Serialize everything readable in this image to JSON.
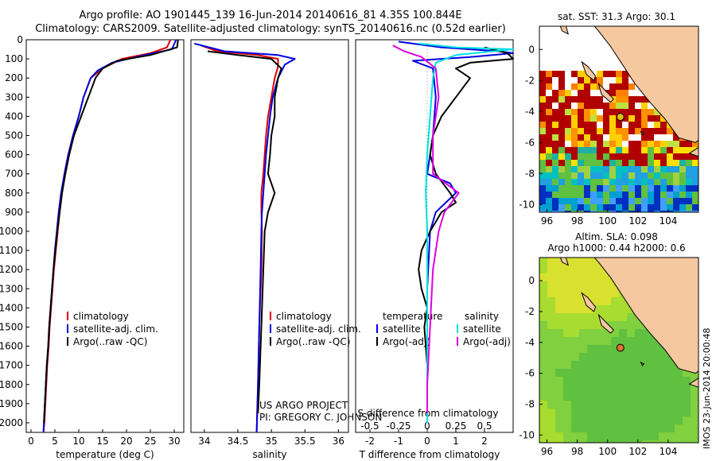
{
  "header": {
    "line1": "Argo profile: AO 1901445_139 16-Jun-2014 20140616_81 4.35S 100.844E",
    "line2": "Climatology: CARS2009. Satellite-adjusted climatology: synTS_20140616.nc (0.52d earlier)"
  },
  "colors": {
    "climatology": "#e00000",
    "satellite": "#0000e0",
    "argo": "#000000",
    "sat_salinity": "#00e0e0",
    "argo_adj_salinity": "#e000e0",
    "land": "#f5c8a0"
  },
  "chart_data": [
    {
      "type": "line",
      "name": "temperature-panel",
      "xlabel": "temperature (deg C)",
      "ylim": [
        0,
        2050
      ],
      "xlim": [
        -1,
        32
      ],
      "xticks": [
        0,
        5,
        10,
        15,
        20,
        25,
        30
      ],
      "yticks": [
        0,
        100,
        200,
        300,
        400,
        500,
        600,
        700,
        800,
        900,
        1000,
        1100,
        1200,
        1300,
        1400,
        1500,
        1600,
        1700,
        1800,
        1900,
        2000
      ],
      "legend": [
        "climatology",
        "satellite-adj. clim.",
        "Argo(..raw -QC)"
      ],
      "series": [
        {
          "name": "climatology",
          "color": "#e00000",
          "points": [
            [
              29.2,
              0
            ],
            [
              28.5,
              40
            ],
            [
              25,
              70
            ],
            [
              19,
              100
            ],
            [
              15,
              150
            ],
            [
              12.5,
              200
            ],
            [
              11,
              300
            ],
            [
              10,
              400
            ],
            [
              8.8,
              500
            ],
            [
              7.8,
              600
            ],
            [
              7,
              700
            ],
            [
              6.5,
              800
            ],
            [
              6,
              900
            ],
            [
              5.6,
              1000
            ],
            [
              5.2,
              1100
            ],
            [
              4.8,
              1200
            ],
            [
              4.5,
              1300
            ],
            [
              4.2,
              1400
            ],
            [
              3.9,
              1500
            ],
            [
              3.7,
              1600
            ],
            [
              3.4,
              1700
            ],
            [
              3.2,
              1800
            ],
            [
              3,
              1900
            ],
            [
              2.8,
              2000
            ],
            [
              2.6,
              2050
            ]
          ]
        },
        {
          "name": "satellite-adj. clim.",
          "color": "#0000e0",
          "points": [
            [
              30.4,
              0
            ],
            [
              29.5,
              50
            ],
            [
              22,
              90
            ],
            [
              17,
              120
            ],
            [
              14,
              160
            ],
            [
              12.5,
              200
            ],
            [
              11,
              300
            ],
            [
              10,
              400
            ],
            [
              8.8,
              500
            ],
            [
              7.8,
              600
            ],
            [
              7,
              700
            ],
            [
              6.3,
              800
            ],
            [
              5.8,
              900
            ],
            [
              5.4,
              1000
            ],
            [
              5,
              1100
            ],
            [
              4.7,
              1200
            ],
            [
              4.4,
              1300
            ],
            [
              4.1,
              1400
            ],
            [
              3.8,
              1500
            ],
            [
              3.6,
              1600
            ],
            [
              3.3,
              1700
            ],
            [
              3.1,
              1800
            ],
            [
              2.9,
              1900
            ],
            [
              2.7,
              2000
            ],
            [
              2.6,
              2050
            ]
          ]
        },
        {
          "name": "Argo(..raw -QC)",
          "color": "#000000",
          "points": [
            [
              30.8,
              0
            ],
            [
              30.6,
              40
            ],
            [
              25,
              80
            ],
            [
              18,
              110
            ],
            [
              15,
              150
            ],
            [
              13.5,
              200
            ],
            [
              12,
              300
            ],
            [
              10.5,
              400
            ],
            [
              9,
              500
            ],
            [
              8,
              600
            ],
            [
              7.2,
              700
            ],
            [
              6.5,
              800
            ],
            [
              6,
              900
            ],
            [
              5.5,
              1000
            ],
            [
              5.1,
              1100
            ],
            [
              4.7,
              1200
            ],
            [
              4.4,
              1300
            ],
            [
              4.1,
              1400
            ],
            [
              3.8,
              1500
            ],
            [
              3.6,
              1600
            ],
            [
              3.3,
              1700
            ],
            [
              3.1,
              1800
            ],
            [
              2.9,
              1900
            ],
            [
              2.7,
              2000
            ]
          ]
        }
      ]
    },
    {
      "type": "line",
      "name": "salinity-panel",
      "xlabel": "salinity",
      "ylim": [
        0,
        2050
      ],
      "xlim": [
        33.8,
        36.15
      ],
      "xticks": [
        34,
        34.5,
        35,
        35.5,
        36
      ],
      "legend": [
        "climatology",
        "satellite-adj. clim.",
        "Argo(..raw -QC)"
      ],
      "annotation": [
        "US ARGO PROJECT",
        "PI: GREGORY C. JOHNSON"
      ],
      "series": [
        {
          "name": "climatology",
          "color": "#e00000",
          "points": [
            [
              33.95,
              30
            ],
            [
              34.2,
              60
            ],
            [
              34.8,
              80
            ],
            [
              35.1,
              100
            ],
            [
              35.1,
              140
            ],
            [
              35.05,
              200
            ],
            [
              35.0,
              300
            ],
            [
              34.95,
              400
            ],
            [
              34.92,
              500
            ],
            [
              34.9,
              600
            ],
            [
              34.88,
              700
            ],
            [
              34.85,
              800
            ],
            [
              34.85,
              900
            ],
            [
              34.86,
              1000
            ],
            [
              34.85,
              1200
            ],
            [
              34.82,
              1500
            ],
            [
              34.8,
              1800
            ],
            [
              34.78,
              2050
            ]
          ]
        },
        {
          "name": "satellite-adj. clim.",
          "color": "#0000e0",
          "points": [
            [
              33.85,
              20
            ],
            [
              34.3,
              60
            ],
            [
              35.1,
              80
            ],
            [
              35.35,
              100
            ],
            [
              35.2,
              130
            ],
            [
              35.1,
              200
            ],
            [
              35.02,
              300
            ],
            [
              34.98,
              400
            ],
            [
              34.95,
              500
            ],
            [
              34.92,
              600
            ],
            [
              34.9,
              700
            ],
            [
              34.88,
              800
            ],
            [
              34.86,
              900
            ],
            [
              34.85,
              1000
            ],
            [
              34.84,
              1200
            ],
            [
              34.82,
              1500
            ],
            [
              34.8,
              1800
            ],
            [
              34.78,
              2050
            ]
          ]
        },
        {
          "name": "Argo(..raw -QC)",
          "color": "#000000",
          "points": [
            [
              34.05,
              60
            ],
            [
              34.5,
              80
            ],
            [
              35.0,
              100
            ],
            [
              35.15,
              150
            ],
            [
              35.1,
              200
            ],
            [
              35.05,
              300
            ],
            [
              35.05,
              400
            ],
            [
              35.0,
              500
            ],
            [
              34.98,
              600
            ],
            [
              34.95,
              700
            ],
            [
              35.05,
              800
            ],
            [
              34.95,
              900
            ],
            [
              34.9,
              1000
            ],
            [
              34.88,
              1200
            ],
            [
              34.85,
              1500
            ],
            [
              34.82,
              1800
            ],
            [
              34.8,
              1950
            ]
          ]
        }
      ]
    },
    {
      "type": "line",
      "name": "difference-panel",
      "xlabel_bottom": "T difference from climatology",
      "xlabel_top": "S difference from climatology",
      "ylim": [
        0,
        2050
      ],
      "xlim": [
        -2.5,
        3
      ],
      "xticks": [
        -2,
        -1,
        0,
        1,
        2
      ],
      "sticks": [
        {
          "label": "-0.5",
          "x": -2
        },
        {
          "label": "-0.25",
          "x": -1
        },
        {
          "label": "0",
          "x": 0
        },
        {
          "label": "0.25",
          "x": 1
        },
        {
          "label": "0.5",
          "x": 2
        }
      ],
      "legend_titles": [
        "temperature",
        "salinity"
      ],
      "legend": [
        "satellite",
        "Argo(-adj)",
        "satellite",
        "Argo(-adj)"
      ],
      "series": [
        {
          "name": "T satellite",
          "color": "#0000e0",
          "points": [
            [
              -1,
              10
            ],
            [
              0.5,
              40
            ],
            [
              2.5,
              60
            ],
            [
              3,
              70
            ],
            [
              1.5,
              90
            ],
            [
              -0.5,
              110
            ],
            [
              0.2,
              150
            ],
            [
              0.3,
              300
            ],
            [
              0.2,
              500
            ],
            [
              0,
              700
            ],
            [
              0.8,
              750
            ],
            [
              1,
              800
            ],
            [
              0.3,
              900
            ],
            [
              0.1,
              1000
            ],
            [
              0,
              1300
            ],
            [
              0,
              1600
            ],
            [
              0,
              2000
            ]
          ]
        },
        {
          "name": "T Argo(-adj)",
          "color": "#000000",
          "points": [
            [
              2,
              40
            ],
            [
              2.8,
              70
            ],
            [
              3,
              100
            ],
            [
              1.5,
              120
            ],
            [
              1,
              150
            ],
            [
              1.5,
              200
            ],
            [
              1,
              300
            ],
            [
              0.5,
              400
            ],
            [
              0.2,
              500
            ],
            [
              0.1,
              600
            ],
            [
              0.3,
              700
            ],
            [
              0.8,
              800
            ],
            [
              1,
              850
            ],
            [
              0.5,
              900
            ],
            [
              0.1,
              1000
            ],
            [
              -0.2,
              1100
            ],
            [
              -0.3,
              1200
            ],
            [
              -0.2,
              1300
            ],
            [
              0,
              1400
            ],
            [
              -0.1,
              1500
            ],
            [
              0,
              1700
            ],
            [
              0,
              1900
            ]
          ]
        },
        {
          "name": "S satellite",
          "color": "#00e0e0",
          "points": [
            [
              -0.3,
              20
            ],
            [
              1,
              40
            ],
            [
              3,
              50
            ],
            [
              1,
              80
            ],
            [
              0.3,
              120
            ],
            [
              0.2,
              200
            ],
            [
              0.1,
              400
            ],
            [
              0,
              600
            ],
            [
              -0.05,
              800
            ],
            [
              0,
              1000
            ],
            [
              0,
              1400
            ],
            [
              0,
              1800
            ],
            [
              0,
              2000
            ]
          ]
        },
        {
          "name": "S Argo(-adj)",
          "color": "#e000e0",
          "points": [
            [
              -1.2,
              30
            ],
            [
              -0.8,
              60
            ],
            [
              -0.2,
              90
            ],
            [
              0.3,
              150
            ],
            [
              0.4,
              300
            ],
            [
              0.3,
              400
            ],
            [
              0.2,
              500
            ],
            [
              0.2,
              700
            ],
            [
              1.1,
              800
            ],
            [
              0.6,
              900
            ],
            [
              0.4,
              1000
            ],
            [
              0.2,
              1200
            ],
            [
              0.1,
              1500
            ],
            [
              0,
              1800
            ],
            [
              0,
              1950
            ]
          ]
        }
      ]
    },
    {
      "type": "heatmap",
      "name": "sst-map",
      "title": "sat. SST: 31.3  Argo: 30.1",
      "xlim": [
        95.5,
        106
      ],
      "ylim": [
        -10.5,
        1.5
      ],
      "xticks": [
        96,
        98,
        100,
        102,
        104
      ],
      "yticks": [
        0,
        -2,
        -4,
        -6,
        -8,
        -10
      ],
      "profile_location": [
        100.844,
        -4.35
      ]
    },
    {
      "type": "heatmap",
      "name": "sla-map",
      "title": "Altim. SLA: 0.098",
      "subtitle": "Argo h1000: 0.44 h2000: 0.6",
      "xlim": [
        95.5,
        106
      ],
      "ylim": [
        -10.5,
        1.5
      ],
      "xticks": [
        96,
        98,
        100,
        102,
        104
      ],
      "yticks": [
        0,
        -2,
        -4,
        -6,
        -8,
        -10
      ],
      "profile_location": [
        100.844,
        -4.35
      ]
    }
  ],
  "footer_stamp": "IMOS 23-Jun-2014 20:00:48"
}
